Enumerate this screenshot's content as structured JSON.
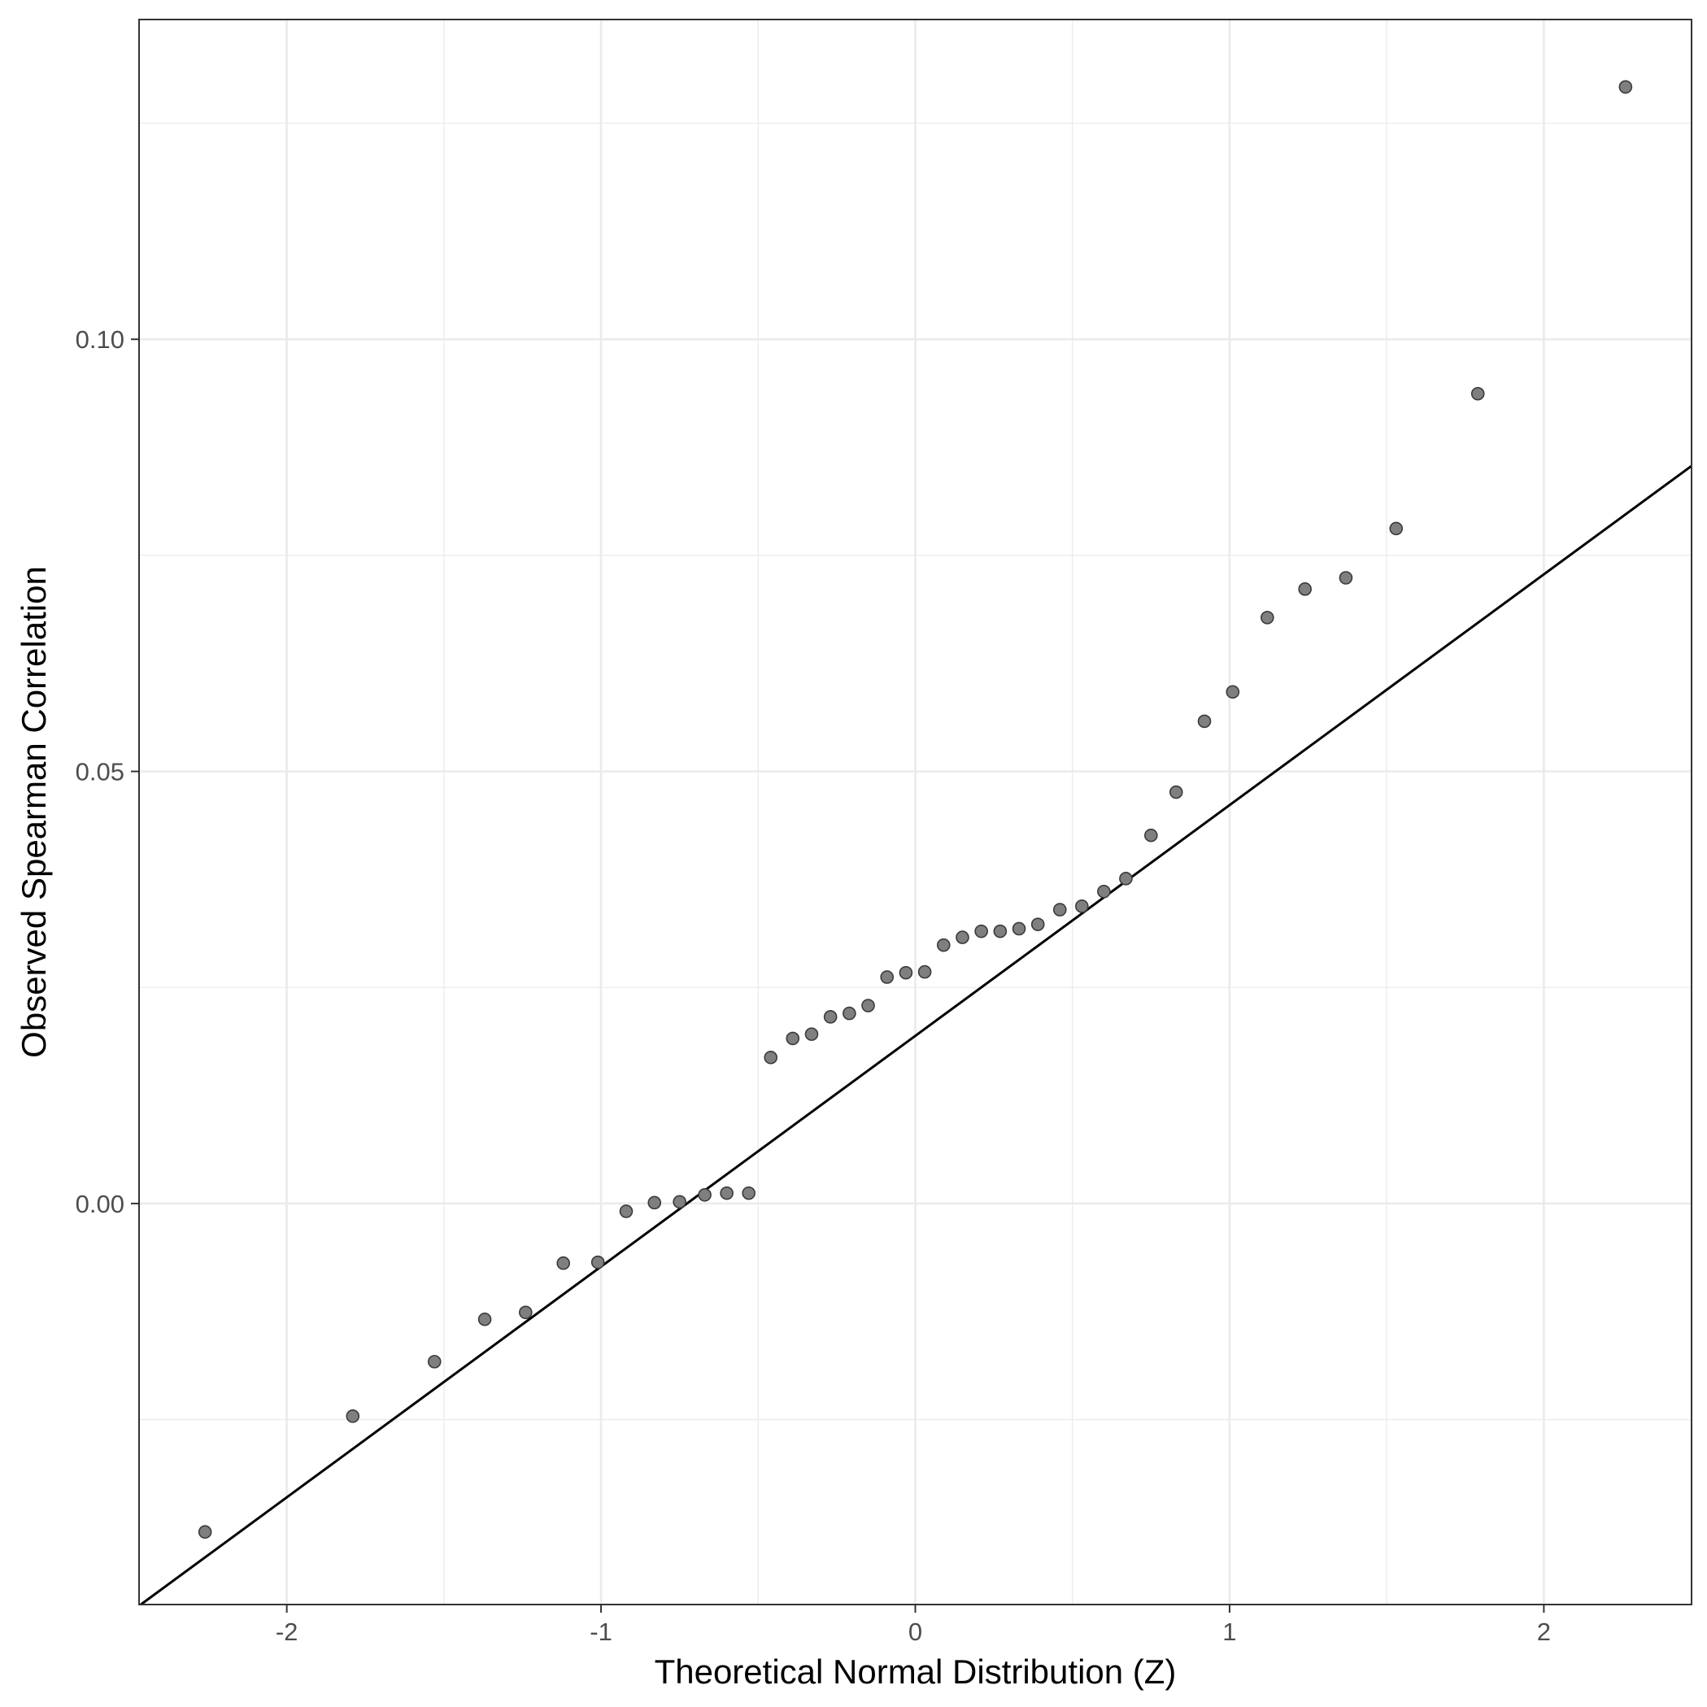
{
  "chart_data": {
    "type": "scatter",
    "title": "",
    "xlabel": "Theoretical Normal Distribution (Z)",
    "ylabel": "Observed Spearman Correlation",
    "xlim": [
      -2.47,
      2.47
    ],
    "ylim": [
      -0.0464,
      0.137
    ],
    "x_ticks": [
      -2,
      -1,
      0,
      1,
      2
    ],
    "x_tick_labels": [
      "-2",
      "-1",
      "0",
      "1",
      "2"
    ],
    "y_ticks": [
      0.0,
      0.05,
      0.1
    ],
    "y_tick_labels": [
      "0.00",
      "0.05",
      "0.10"
    ],
    "x_minor_ticks": [
      -1.5,
      -0.5,
      0.5,
      1.5
    ],
    "y_minor_ticks": [
      -0.025,
      0.025,
      0.075,
      0.125
    ],
    "grid": true,
    "theme": "bw",
    "point_color": "#000000",
    "point_opacity": 0.5,
    "line_color": "#000000",
    "reference_line": {
      "slope": 0.0267,
      "intercept": 0.0194
    },
    "points": {
      "x": [
        -2.26,
        -1.79,
        -1.53,
        -1.37,
        -1.24,
        -1.12,
        -1.01,
        -0.92,
        -0.83,
        -0.75,
        -0.67,
        -0.6,
        -0.53,
        -0.46,
        -0.39,
        -0.33,
        -0.27,
        -0.21,
        -0.15,
        -0.09,
        -0.03,
        0.03,
        0.09,
        0.15,
        0.21,
        0.27,
        0.33,
        0.39,
        0.46,
        0.53,
        0.6,
        0.67,
        0.75,
        0.83,
        0.92,
        1.01,
        1.12,
        1.24,
        1.37,
        1.53,
        1.79,
        2.26
      ],
      "y": [
        -0.038,
        -0.0246,
        -0.0183,
        -0.0134,
        -0.0126,
        -0.0069,
        -0.0068,
        -0.0009,
        0.0001,
        0.0002,
        0.001,
        0.0012,
        0.0012,
        0.0169,
        0.0191,
        0.0196,
        0.0216,
        0.022,
        0.0229,
        0.0262,
        0.0267,
        0.0268,
        0.0299,
        0.0308,
        0.0315,
        0.0315,
        0.0318,
        0.0323,
        0.034,
        0.0344,
        0.0361,
        0.0376,
        0.0426,
        0.0476,
        0.0558,
        0.0592,
        0.0678,
        0.0711,
        0.0724,
        0.0781,
        0.0937,
        0.1292
      ]
    }
  }
}
